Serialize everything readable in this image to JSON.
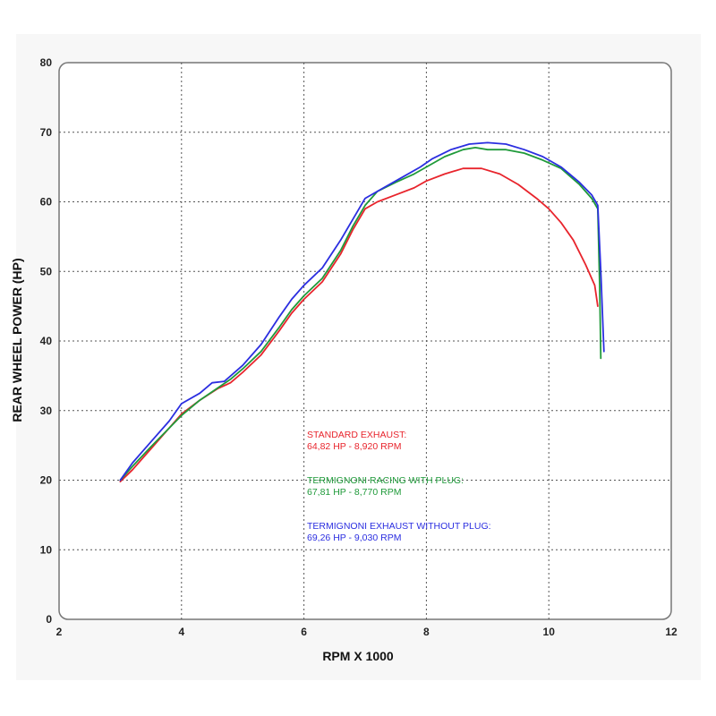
{
  "chart_data": {
    "type": "line",
    "title": "",
    "xlabel": "RPM X 1000",
    "ylabel": "REAR WHEEL POWER (HP)",
    "xlim": [
      2,
      12
    ],
    "ylim": [
      0,
      80
    ],
    "x_ticks": [
      "2",
      "4",
      "6",
      "8",
      "10",
      "12"
    ],
    "y_ticks": [
      "0",
      "10",
      "20",
      "30",
      "40",
      "50",
      "60",
      "70",
      "80"
    ],
    "grid": true,
    "colors": {
      "standard": "#e8242c",
      "racing": "#1f9a3a",
      "without_plug": "#2b2ee0"
    },
    "series": [
      {
        "key": "standard",
        "color": "#e8242c",
        "points": [
          [
            3.0,
            19.8
          ],
          [
            3.2,
            21.5
          ],
          [
            3.5,
            24.5
          ],
          [
            3.8,
            27.5
          ],
          [
            4.0,
            29.5
          ],
          [
            4.3,
            31.5
          ],
          [
            4.6,
            33.2
          ],
          [
            4.8,
            34.0
          ],
          [
            5.0,
            35.5
          ],
          [
            5.3,
            38.0
          ],
          [
            5.6,
            41.5
          ],
          [
            5.8,
            44.0
          ],
          [
            6.0,
            46.0
          ],
          [
            6.3,
            48.5
          ],
          [
            6.6,
            52.5
          ],
          [
            6.8,
            56.0
          ],
          [
            7.0,
            59.0
          ],
          [
            7.2,
            60.0
          ],
          [
            7.5,
            61.0
          ],
          [
            7.8,
            62.0
          ],
          [
            8.0,
            63.0
          ],
          [
            8.3,
            64.0
          ],
          [
            8.6,
            64.8
          ],
          [
            8.9,
            64.8
          ],
          [
            9.2,
            64.0
          ],
          [
            9.5,
            62.5
          ],
          [
            9.8,
            60.5
          ],
          [
            10.0,
            59.0
          ],
          [
            10.2,
            57.0
          ],
          [
            10.4,
            54.5
          ],
          [
            10.6,
            51.0
          ],
          [
            10.75,
            48.0
          ],
          [
            10.8,
            45.0
          ]
        ]
      },
      {
        "key": "racing",
        "color": "#1f9a3a",
        "points": [
          [
            3.0,
            20.0
          ],
          [
            3.2,
            22.0
          ],
          [
            3.5,
            24.8
          ],
          [
            3.8,
            27.5
          ],
          [
            4.0,
            29.3
          ],
          [
            4.3,
            31.5
          ],
          [
            4.6,
            33.3
          ],
          [
            4.8,
            34.5
          ],
          [
            5.0,
            36.0
          ],
          [
            5.3,
            38.5
          ],
          [
            5.6,
            42.0
          ],
          [
            5.8,
            44.5
          ],
          [
            6.0,
            46.5
          ],
          [
            6.3,
            49.0
          ],
          [
            6.6,
            53.0
          ],
          [
            6.8,
            56.5
          ],
          [
            7.0,
            59.5
          ],
          [
            7.2,
            61.5
          ],
          [
            7.5,
            62.8
          ],
          [
            7.8,
            64.0
          ],
          [
            8.0,
            65.0
          ],
          [
            8.3,
            66.5
          ],
          [
            8.6,
            67.5
          ],
          [
            8.8,
            67.8
          ],
          [
            9.0,
            67.5
          ],
          [
            9.3,
            67.5
          ],
          [
            9.6,
            67.0
          ],
          [
            9.9,
            66.0
          ],
          [
            10.2,
            64.8
          ],
          [
            10.5,
            62.5
          ],
          [
            10.7,
            60.5
          ],
          [
            10.8,
            59.0
          ],
          [
            10.83,
            48.0
          ],
          [
            10.85,
            37.5
          ]
        ]
      },
      {
        "key": "without_plug",
        "color": "#2b2ee0",
        "points": [
          [
            3.0,
            20.0
          ],
          [
            3.2,
            22.5
          ],
          [
            3.5,
            25.5
          ],
          [
            3.8,
            28.5
          ],
          [
            4.0,
            31.0
          ],
          [
            4.3,
            32.5
          ],
          [
            4.5,
            34.0
          ],
          [
            4.7,
            34.2
          ],
          [
            5.0,
            36.5
          ],
          [
            5.3,
            39.5
          ],
          [
            5.6,
            43.5
          ],
          [
            5.8,
            46.0
          ],
          [
            6.0,
            48.0
          ],
          [
            6.3,
            50.5
          ],
          [
            6.6,
            54.5
          ],
          [
            6.8,
            57.5
          ],
          [
            7.0,
            60.5
          ],
          [
            7.3,
            62.0
          ],
          [
            7.6,
            63.5
          ],
          [
            7.9,
            65.0
          ],
          [
            8.1,
            66.2
          ],
          [
            8.4,
            67.5
          ],
          [
            8.7,
            68.3
          ],
          [
            9.0,
            68.5
          ],
          [
            9.3,
            68.3
          ],
          [
            9.6,
            67.5
          ],
          [
            9.9,
            66.5
          ],
          [
            10.2,
            65.0
          ],
          [
            10.5,
            62.8
          ],
          [
            10.7,
            61.0
          ],
          [
            10.8,
            59.5
          ],
          [
            10.85,
            50.0
          ],
          [
            10.9,
            38.5
          ]
        ]
      }
    ],
    "annotations": [
      {
        "key": "standard",
        "color": "#e8242c",
        "lines": [
          "STANDARD EXHAUST:",
          "64,82 HP - 8,920 RPM"
        ]
      },
      {
        "key": "racing",
        "color": "#1f9a3a",
        "lines": [
          "TERMIGNONI RACING WITH PLUG:",
          "67,81 HP - 8,770 RPM"
        ]
      },
      {
        "key": "without_plug",
        "color": "#2b2ee0",
        "lines": [
          "TERMIGNONI EXHAUST WITHOUT PLUG:",
          "69,26 HP - 9,030 RPM"
        ]
      }
    ]
  }
}
